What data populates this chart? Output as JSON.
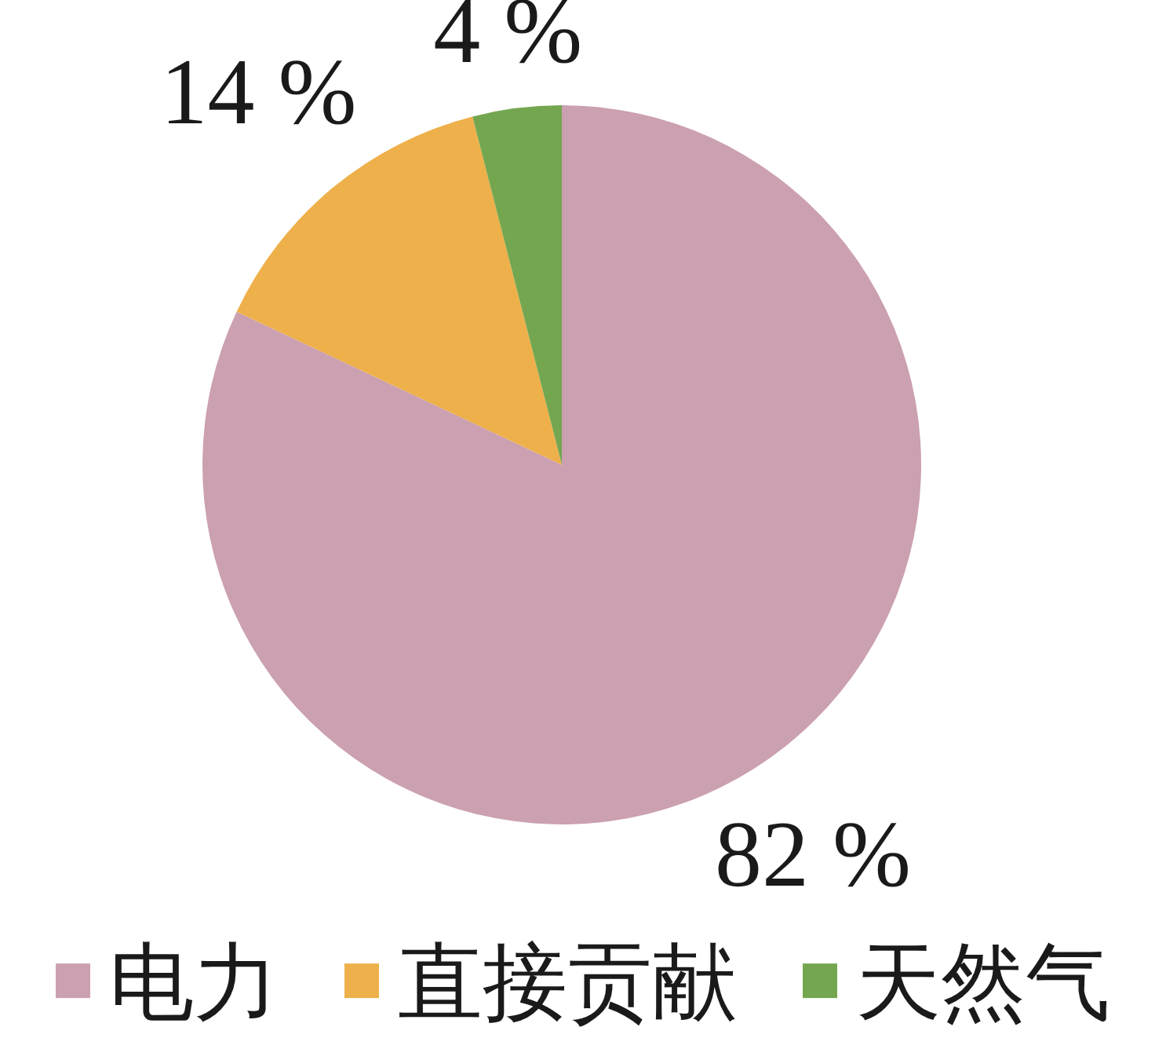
{
  "chart_data": {
    "type": "pie",
    "categories": [
      "电力",
      "直接贡献",
      "天然气"
    ],
    "values": [
      82,
      14,
      4
    ],
    "colors": [
      "#cba0b0",
      "#eeb04a",
      "#74a650"
    ],
    "value_labels": [
      "82 %",
      "14 %",
      "4 %"
    ],
    "legend": "bottom"
  }
}
